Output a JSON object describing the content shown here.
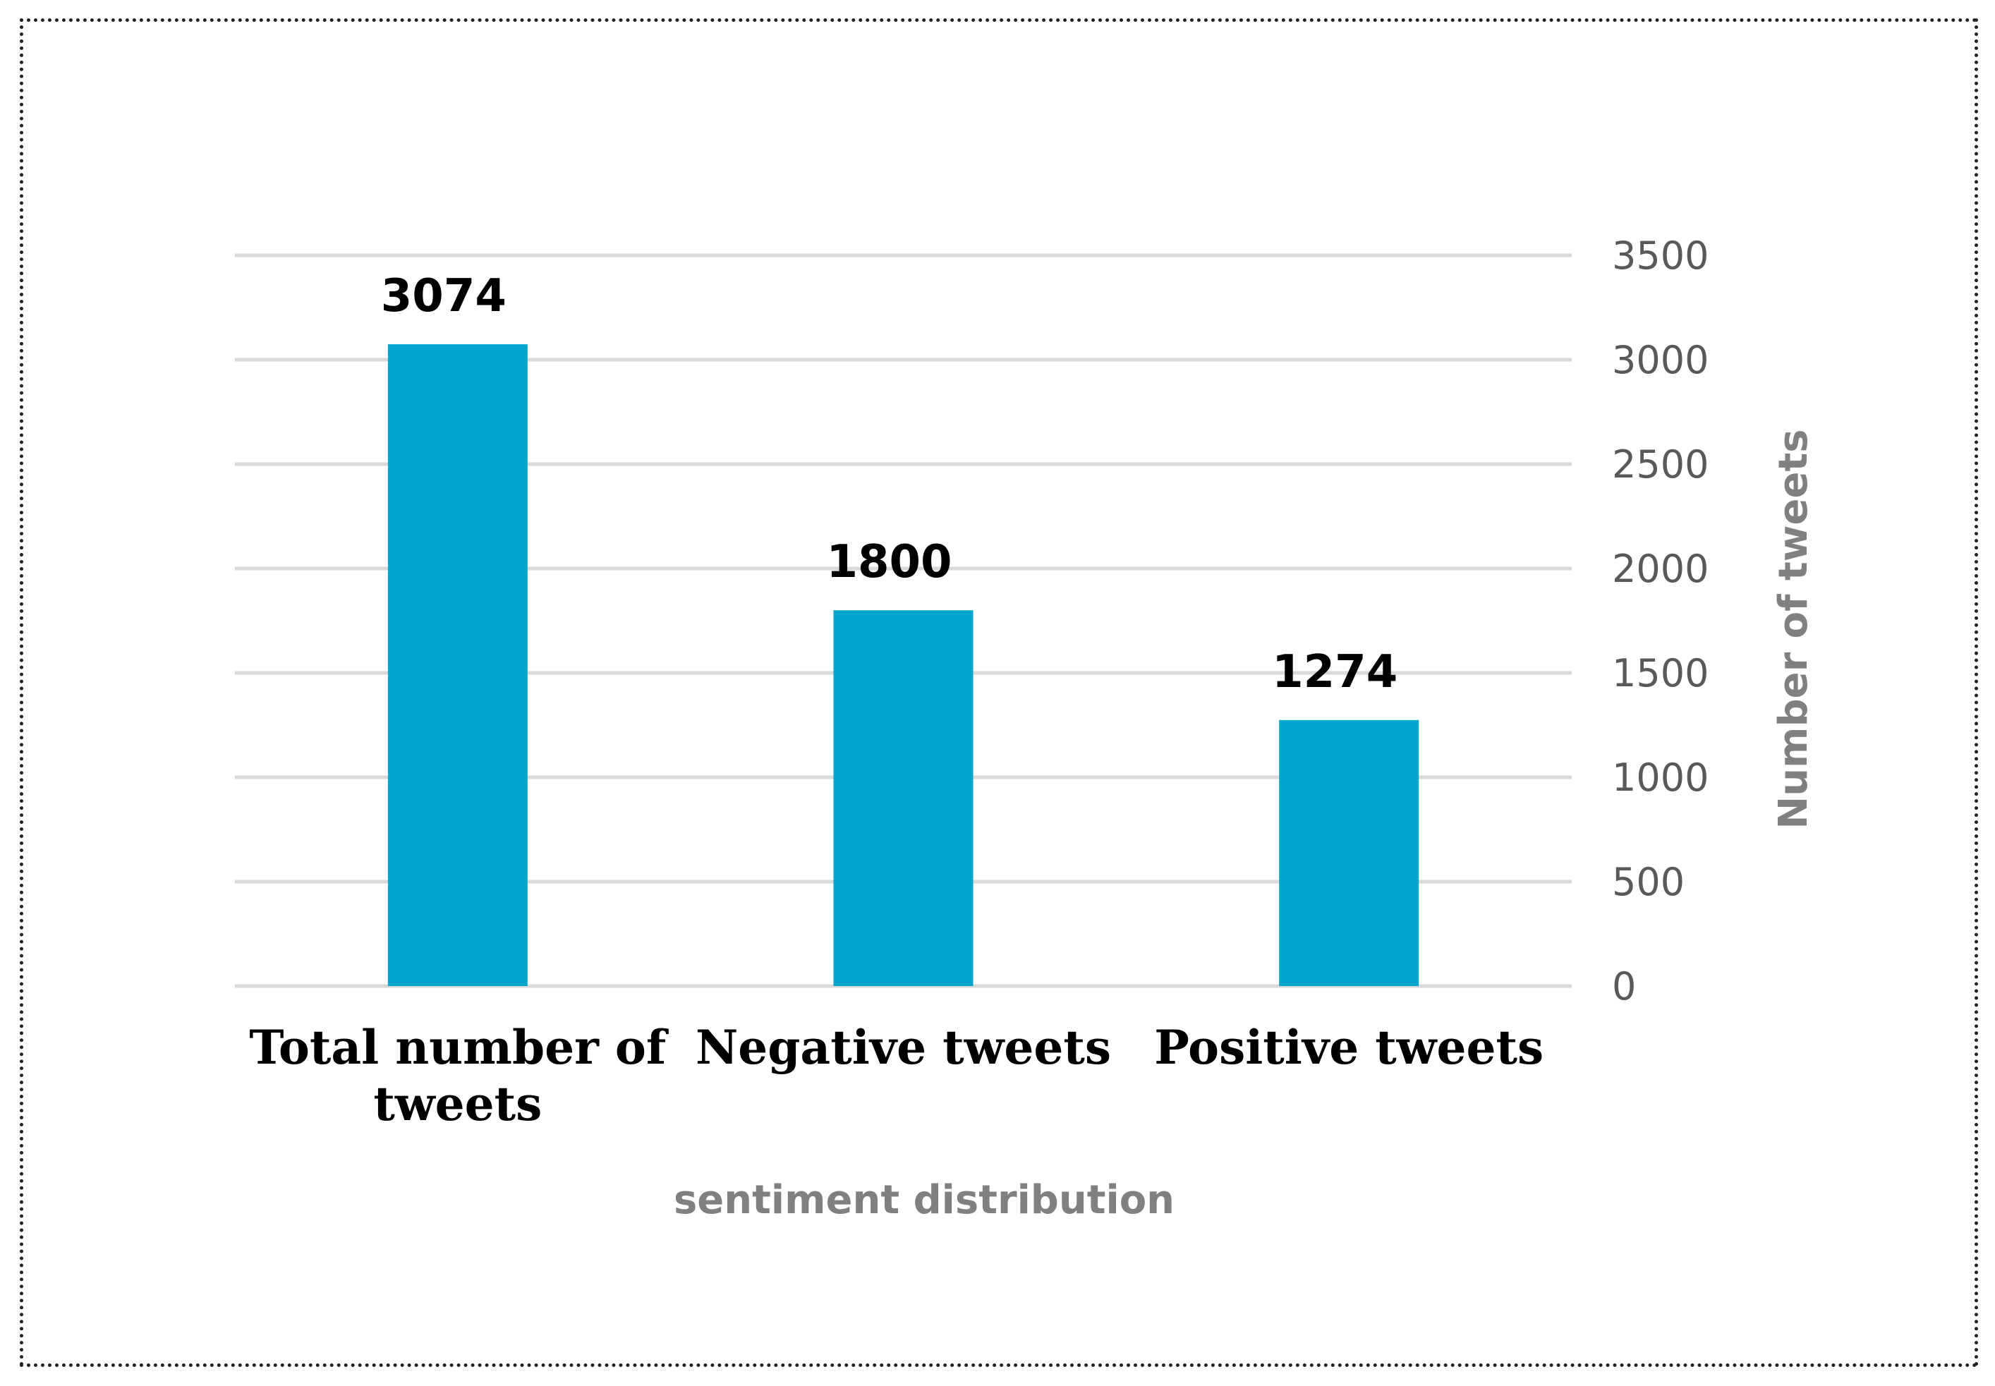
{
  "chart_data": {
    "type": "bar",
    "categories": [
      [
        "Total number of",
        "tweets"
      ],
      [
        "Negative tweets"
      ],
      [
        "Positive tweets"
      ]
    ],
    "values": [
      3074,
      1800,
      1274
    ],
    "data_labels": [
      "3074",
      "1800",
      "1274"
    ],
    "xlabel": "sentiment distribution",
    "ylabel": "Number of tweets",
    "ylim": [
      0,
      3500
    ],
    "yticks": [
      0,
      500,
      1000,
      1500,
      2000,
      2500,
      3000,
      3500
    ],
    "y_axis_side": "right",
    "grid": true,
    "bar_color": "#03A5CC",
    "grid_color": "#D9D9D9",
    "tick_color": "#595959",
    "axis_title_color": "#808080"
  }
}
